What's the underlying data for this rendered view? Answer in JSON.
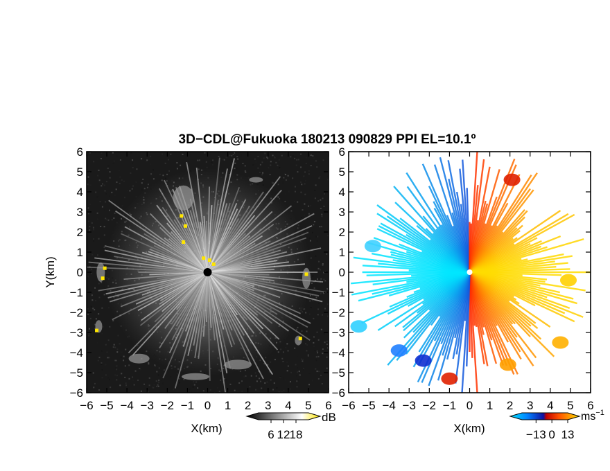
{
  "title": "3D−CDL@Fukuoka 180213 090829 PPI EL=10.1º",
  "chart_data": [
    {
      "type": "heatmap",
      "panel": "left",
      "variable_unit": "dB",
      "xlabel": "X(km)",
      "ylabel": "Y(km)",
      "xlim": [
        -6,
        6
      ],
      "ylim": [
        -6,
        6
      ],
      "xticks": [
        -6,
        -5,
        -4,
        -3,
        -2,
        -1,
        0,
        1,
        2,
        3,
        4,
        5,
        6
      ],
      "yticks": [
        -6,
        -5,
        -4,
        -3,
        -2,
        -1,
        0,
        1,
        2,
        3,
        4,
        5,
        6
      ],
      "xtick_labels": [
        "−6",
        "−5",
        "−4",
        "−3",
        "−2",
        "−1",
        "0",
        "1",
        "2",
        "3",
        "4",
        "5",
        "6"
      ],
      "ytick_labels": [
        "−6",
        "−5",
        "−4",
        "−3",
        "−2",
        "−1",
        "0",
        "1",
        "2",
        "3",
        "4",
        "5",
        "6"
      ],
      "colorbar": {
        "ticks": [
          6,
          12,
          18
        ],
        "tick_labels": [
          "6",
          "12",
          "18"
        ],
        "label": "dB",
        "colors": [
          "#000000",
          "#ffffff",
          "#ffe600"
        ]
      },
      "radar_center": [
        0,
        0
      ]
    },
    {
      "type": "heatmap",
      "panel": "right",
      "variable_unit": "ms⁻¹",
      "xlabel": "X(km)",
      "xlim": [
        -6,
        6
      ],
      "ylim": [
        -6,
        6
      ],
      "xticks": [
        -6,
        -5,
        -4,
        -3,
        -2,
        -1,
        0,
        1,
        2,
        3,
        4,
        5,
        6
      ],
      "yticks": [
        -6,
        -5,
        -4,
        -3,
        -2,
        -1,
        0,
        1,
        2,
        3,
        4,
        5,
        6
      ],
      "xtick_labels": [
        "−6",
        "−5",
        "−4",
        "−3",
        "−2",
        "−1",
        "0",
        "1",
        "2",
        "3",
        "4",
        "5",
        "6"
      ],
      "ytick_labels": [
        "−6",
        "−5",
        "−4",
        "−3",
        "−2",
        "−1",
        "0",
        "1",
        "2",
        "3",
        "4",
        "5",
        "6"
      ],
      "colorbar": {
        "ticks": [
          -13,
          0,
          13
        ],
        "tick_labels": [
          "−13",
          "0",
          "13"
        ],
        "label_base": "ms",
        "label_exp": "−1",
        "colors": [
          "#00e5ff",
          "#0050ff",
          "#1010b0",
          "#ff2000",
          "#ff9900",
          "#ffe000"
        ]
      },
      "radar_center": [
        0,
        0
      ]
    }
  ]
}
